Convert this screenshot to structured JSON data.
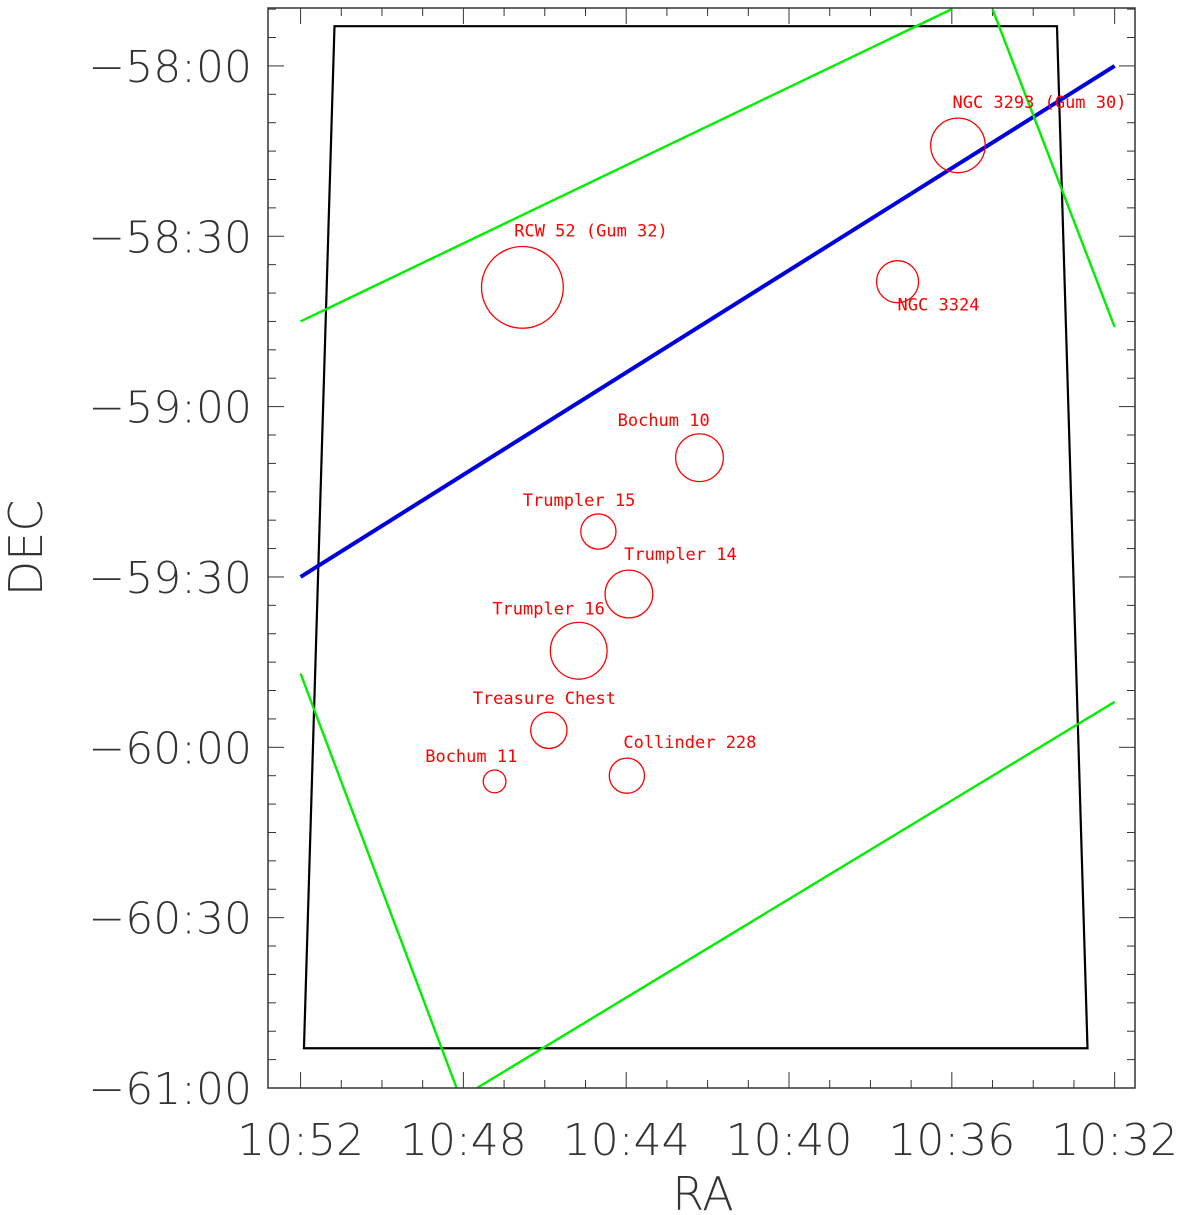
{
  "chart_data": {
    "type": "scatter",
    "title": "",
    "xlabel": "RA",
    "ylabel": "DEC",
    "x_ticks": [
      "10:52",
      "10:48",
      "10:44",
      "10:40",
      "10:36",
      "10:32"
    ],
    "y_ticks": [
      "−58:00",
      "−58:30",
      "−59:00",
      "−59:30",
      "−60:00",
      "−60:30",
      "−61:00"
    ],
    "xlim_hours": [
      10.88,
      10.525
    ],
    "ylim_deg": [
      -61.0,
      -57.83
    ],
    "x_reversed": true,
    "grid": false,
    "objects": [
      {
        "name": "NGC 3293 (Gum 30)",
        "ra": "10:35:51",
        "dec": "-58:14",
        "r_arcmin": 4.8,
        "label_side": "above-right"
      },
      {
        "name": "NGC 3324",
        "ra": "10:37:20",
        "dec": "-58:38",
        "r_arcmin": 3.7,
        "label_side": "below-right"
      },
      {
        "name": "RCW 52 (Gum 32)",
        "ra": "10:46:33",
        "dec": "-58:39",
        "r_arcmin": 7.2,
        "label_side": "above-right"
      },
      {
        "name": "Bochum 10",
        "ra": "10:42:12",
        "dec": "-59:09",
        "r_arcmin": 4.2,
        "label_side": "above-left"
      },
      {
        "name": "Trumpler 15",
        "ra": "10:44:41",
        "dec": "-59:22",
        "r_arcmin": 3.1,
        "label_side": "above-left"
      },
      {
        "name": "Trumpler 14",
        "ra": "10:43:56",
        "dec": "-59:33",
        "r_arcmin": 4.2,
        "label_side": "above-right"
      },
      {
        "name": "Trumpler 16",
        "ra": "10:45:10",
        "dec": "-59:43",
        "r_arcmin": 5.0,
        "label_side": "above-left"
      },
      {
        "name": "Treasure Chest",
        "ra": "10:45:54",
        "dec": "-59:57",
        "r_arcmin": 3.2,
        "label_side": "above-left"
      },
      {
        "name": "Collinder 228",
        "ra": "10:43:59",
        "dec": "-60:05",
        "r_arcmin": 3.1,
        "label_side": "above-right"
      },
      {
        "name": "Bochum 11",
        "ra": "10:47:14",
        "dec": "-60:06",
        "r_arcmin": 2.0,
        "label_side": "above-left"
      }
    ],
    "lines": [
      {
        "name": "blue-track",
        "color": "#0000dd",
        "points": [
          [
            "10:52:00",
            "-59:30"
          ],
          [
            "10:32:00",
            "-58:00"
          ]
        ]
      },
      {
        "name": "green-line-1",
        "color": "#00ee00",
        "points": [
          [
            "10:52:00",
            "-58:45"
          ],
          [
            "10:36:00",
            "-57:50"
          ]
        ]
      },
      {
        "name": "green-line-2",
        "color": "#00ee00",
        "points": [
          [
            "10:35:00",
            "-57:50"
          ],
          [
            "10:32:00",
            "-58:46"
          ]
        ]
      },
      {
        "name": "green-line-3",
        "color": "#00ee00",
        "points": [
          [
            "10:52:00",
            "-59:47"
          ],
          [
            "10:48:10",
            "-61:00"
          ]
        ]
      },
      {
        "name": "green-line-4",
        "color": "#00ee00",
        "points": [
          [
            "10:47:40",
            "-61:00"
          ],
          [
            "10:32:00",
            "-59:52"
          ]
        ]
      }
    ],
    "field_outline": {
      "color": "#000000",
      "corners": [
        [
          "10:51:10",
          "-57:53"
        ],
        [
          "10:33:25",
          "-57:53"
        ],
        [
          "10:32:40",
          "-60:53"
        ],
        [
          "10:51:55",
          "-60:53"
        ]
      ]
    },
    "colors": {
      "objects": "#ff0000",
      "axes": "#333333",
      "outline": "#000000"
    }
  }
}
